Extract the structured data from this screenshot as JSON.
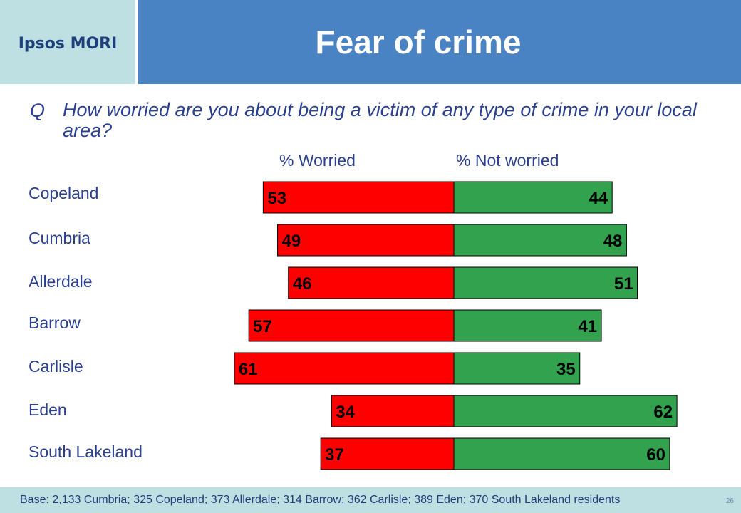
{
  "header": {
    "logo": "Ipsos MORI",
    "title": "Fear of crime"
  },
  "question": {
    "prefix": "Q",
    "text": "How worried are you about being a victim of any type of crime in your local area?"
  },
  "chart_data": {
    "type": "bar",
    "orientation": "horizontal-diverging",
    "categories": [
      "Copeland",
      "Cumbria",
      "Allerdale",
      "Barrow",
      "Carlisle",
      "Eden",
      "South Lakeland"
    ],
    "series": [
      {
        "name": "% Worried",
        "values": [
          53,
          49,
          46,
          57,
          61,
          34,
          37
        ],
        "color": "#ff0000"
      },
      {
        "name": "% Not worried",
        "values": [
          44,
          48,
          51,
          41,
          35,
          62,
          60
        ],
        "color": "#33a24f"
      }
    ],
    "unit": "%",
    "grid": false
  },
  "footer": {
    "base": "Base: 2,133 Cumbria; 325 Copeland; 373 Allerdale; 314 Barrow; 362 Carlisle; 389 Eden; 370 South Lakeland residents",
    "page": "26"
  }
}
